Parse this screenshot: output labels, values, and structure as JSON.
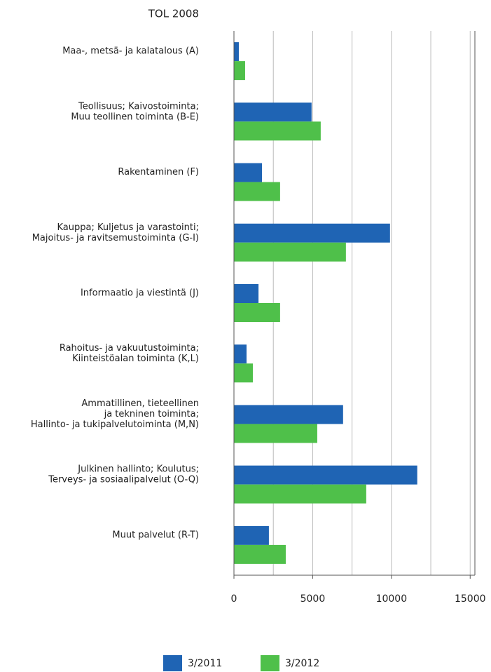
{
  "chart_data": {
    "type": "hbar",
    "title": "TOL 2008",
    "categories": [
      [
        "Maa-, metsä- ja kalatalous (A)"
      ],
      [
        "Teollisuus; Kaivostoiminta;",
        "Muu teollinen toiminta (B-E)"
      ],
      [
        "Rakentaminen (F)"
      ],
      [
        "Kauppa; Kuljetus ja varastointi;",
        "Majoitus- ja ravitsemustoiminta (G-I)"
      ],
      [
        "Informaatio ja viestintä (J)"
      ],
      [
        "Rahoitus- ja vakuutustoiminta;",
        "Kiinteistöalan toiminta (K,L)"
      ],
      [
        "Ammatillinen, tieteellinen",
        "ja tekninen toiminta;",
        "Hallinto- ja tukipalvelutoiminta (M,N)"
      ],
      [
        "Julkinen hallinto; Koulutus;",
        "Terveys- ja sosiaalipalvelut (O-Q)"
      ],
      [
        "Muut palvelut (R-T)"
      ]
    ],
    "series": [
      {
        "name": "3/2011",
        "color": "#1f64b4",
        "values": [
          310,
          4930,
          1780,
          9910,
          1560,
          800,
          6930,
          11640,
          2220
        ]
      },
      {
        "name": "3/2012",
        "color": "#4fc04a",
        "values": [
          710,
          5510,
          2930,
          7110,
          2930,
          1200,
          5290,
          8400,
          3290
        ]
      }
    ],
    "xlim": [
      0,
      15300
    ],
    "xticks": [
      0,
      5000,
      10000,
      15000
    ],
    "grid_lines": [
      2500,
      5000,
      7500,
      10000,
      12500,
      15000
    ],
    "grid": true,
    "legend": "bottom"
  }
}
